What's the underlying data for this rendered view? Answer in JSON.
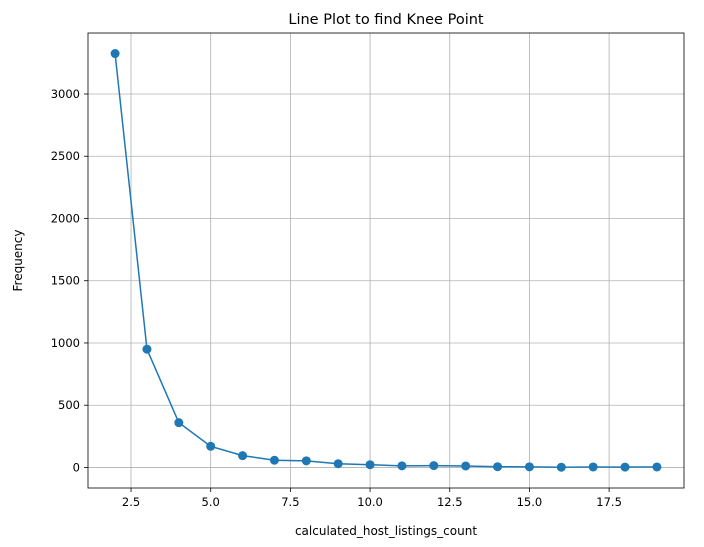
{
  "chart_data": {
    "type": "line",
    "title": "Line Plot to find Knee Point",
    "xlabel": "calculated_host_listings_count",
    "ylabel": "Frequency",
    "xlim": [
      1.15,
      19.85
    ],
    "ylim": [
      -165,
      3490
    ],
    "xticks": [
      2.5,
      5.0,
      7.5,
      10.0,
      12.5,
      15.0,
      17.5
    ],
    "xtick_labels": [
      "2.5",
      "5.0",
      "7.5",
      "10.0",
      "12.5",
      "15.0",
      "17.5"
    ],
    "yticks": [
      0,
      500,
      1000,
      1500,
      2000,
      2500,
      3000
    ],
    "ytick_labels": [
      "0",
      "500",
      "1000",
      "1500",
      "2000",
      "2500",
      "3000"
    ],
    "grid": true,
    "series": [
      {
        "color": "#1f77b4",
        "marker": "circle",
        "x": [
          2,
          3,
          4,
          5,
          6,
          7,
          8,
          9,
          10,
          11,
          12,
          13,
          14,
          15,
          16,
          17,
          18,
          19
        ],
        "y": [
          3325,
          950,
          360,
          170,
          95,
          58,
          53,
          30,
          22,
          13,
          15,
          12,
          6,
          5,
          2,
          4,
          3,
          4
        ]
      }
    ]
  }
}
